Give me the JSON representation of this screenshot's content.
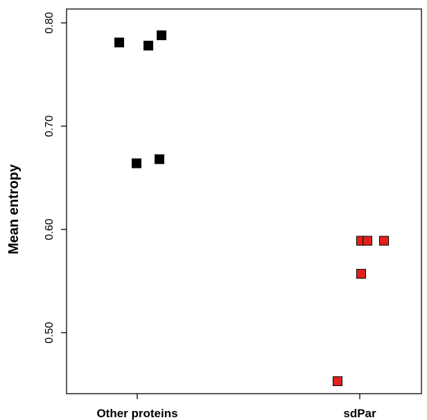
{
  "chart_data": {
    "type": "scatter",
    "title": "",
    "xlabel": "",
    "ylabel": "Mean entropy",
    "categories": [
      "Other proteins",
      "sdPar"
    ],
    "ylim": [
      0.445,
      0.8
    ],
    "y_ticks": [
      0.5,
      0.6,
      0.7,
      0.8
    ],
    "y_tick_labels": [
      "0.50",
      "0.60",
      "0.70",
      "0.80"
    ],
    "grid": false,
    "legend": "none",
    "series": [
      {
        "category": "Other proteins",
        "color": "#000000",
        "marker": "square",
        "values": [
          0.781,
          0.778,
          0.788,
          0.664,
          0.668
        ]
      },
      {
        "category": "sdPar",
        "color": "#e3201b",
        "marker": "square",
        "values": [
          0.589,
          0.589,
          0.589,
          0.557,
          0.453
        ]
      }
    ]
  }
}
